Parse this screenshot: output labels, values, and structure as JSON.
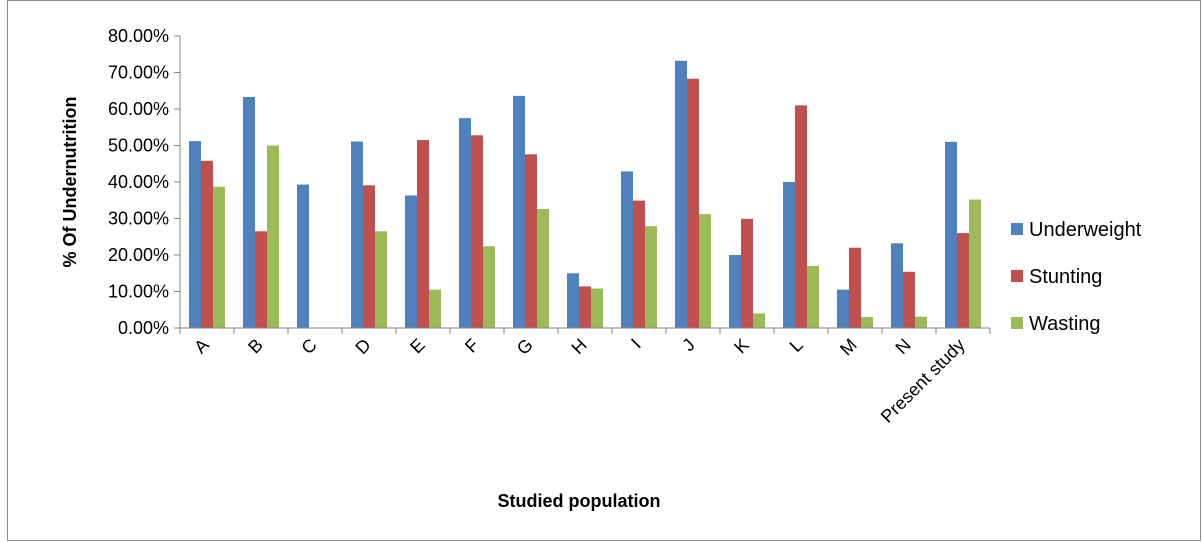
{
  "chart_data": {
    "type": "bar",
    "title": "",
    "xlabel": "Studied population",
    "ylabel": "% Of Undernutrition",
    "ylim": [
      0,
      80
    ],
    "ytick_values": [
      0,
      10,
      20,
      30,
      40,
      50,
      60,
      70,
      80
    ],
    "ytick_labels": [
      "0.00%",
      "10.00%",
      "20.00%",
      "30.00%",
      "40.00%",
      "50.00%",
      "60.00%",
      "70.00%",
      "80.00%"
    ],
    "grid": false,
    "legend_position": "right",
    "categories": [
      "A",
      "B",
      "C",
      "D",
      "E",
      "F",
      "G",
      "H",
      "I",
      "J",
      "K",
      "L",
      "M",
      "N",
      "Present study"
    ],
    "series": [
      {
        "name": "Underweight",
        "color": "#4f81bd",
        "values": [
          51.2,
          63.3,
          39.3,
          51.1,
          36.3,
          57.5,
          63.6,
          15.0,
          42.9,
          73.2,
          20.0,
          40.0,
          10.5,
          23.2,
          51.0
        ]
      },
      {
        "name": "Stunting",
        "color": "#c0504d",
        "values": [
          45.8,
          26.5,
          0,
          39.1,
          51.5,
          52.8,
          47.6,
          11.4,
          34.9,
          68.3,
          29.9,
          61.0,
          22.0,
          15.4,
          26.0
        ]
      },
      {
        "name": "Wasting",
        "color": "#9bbb59",
        "values": [
          38.7,
          50.0,
          0,
          26.5,
          10.5,
          22.4,
          32.6,
          10.8,
          27.9,
          31.2,
          4.0,
          17.0,
          3.0,
          3.1,
          35.2
        ]
      }
    ]
  }
}
